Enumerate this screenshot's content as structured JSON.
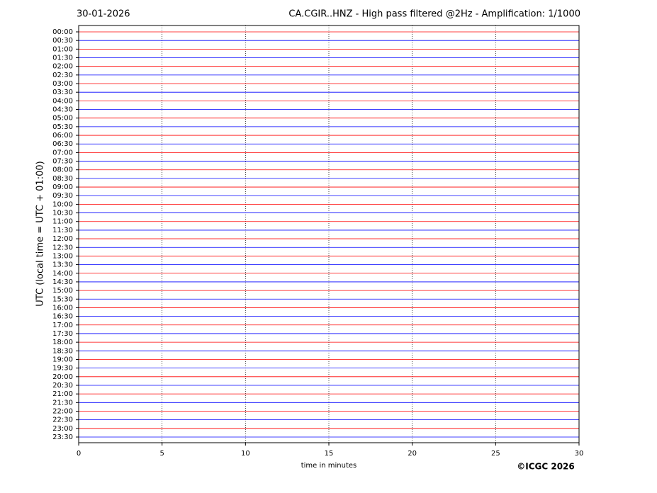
{
  "chart_data": {
    "type": "line",
    "date": "30-01-2026",
    "title": "CA.CGIR..HNZ - High pass filtered @2Hz - Amplification: 1/1000",
    "x_label": "time in minutes",
    "y_label": "UTC (local time = UTC + 01:00)",
    "copyright": "©ICGC 2026",
    "categories": [
      "00:00",
      "00:30",
      "01:00",
      "01:30",
      "02:00",
      "02:30",
      "03:00",
      "03:30",
      "04:00",
      "04:30",
      "05:00",
      "05:30",
      "06:00",
      "06:30",
      "07:00",
      "07:30",
      "08:00",
      "08:30",
      "09:00",
      "09:30",
      "10:00",
      "10:30",
      "11:00",
      "11:30",
      "12:00",
      "12:30",
      "13:00",
      "13:30",
      "14:00",
      "14:30",
      "15:00",
      "15:30",
      "16:00",
      "16:30",
      "17:00",
      "17:30",
      "18:00",
      "18:30",
      "19:00",
      "19:30",
      "20:00",
      "20:30",
      "21:00",
      "21:30",
      "22:00",
      "22:30",
      "23:00",
      "23:30"
    ],
    "trace_colors": [
      "#ff0000",
      "#0000ff"
    ],
    "xlim": [
      0,
      30
    ],
    "xticks": [
      0,
      5,
      10,
      15,
      20,
      25,
      30
    ],
    "grid": true
  }
}
